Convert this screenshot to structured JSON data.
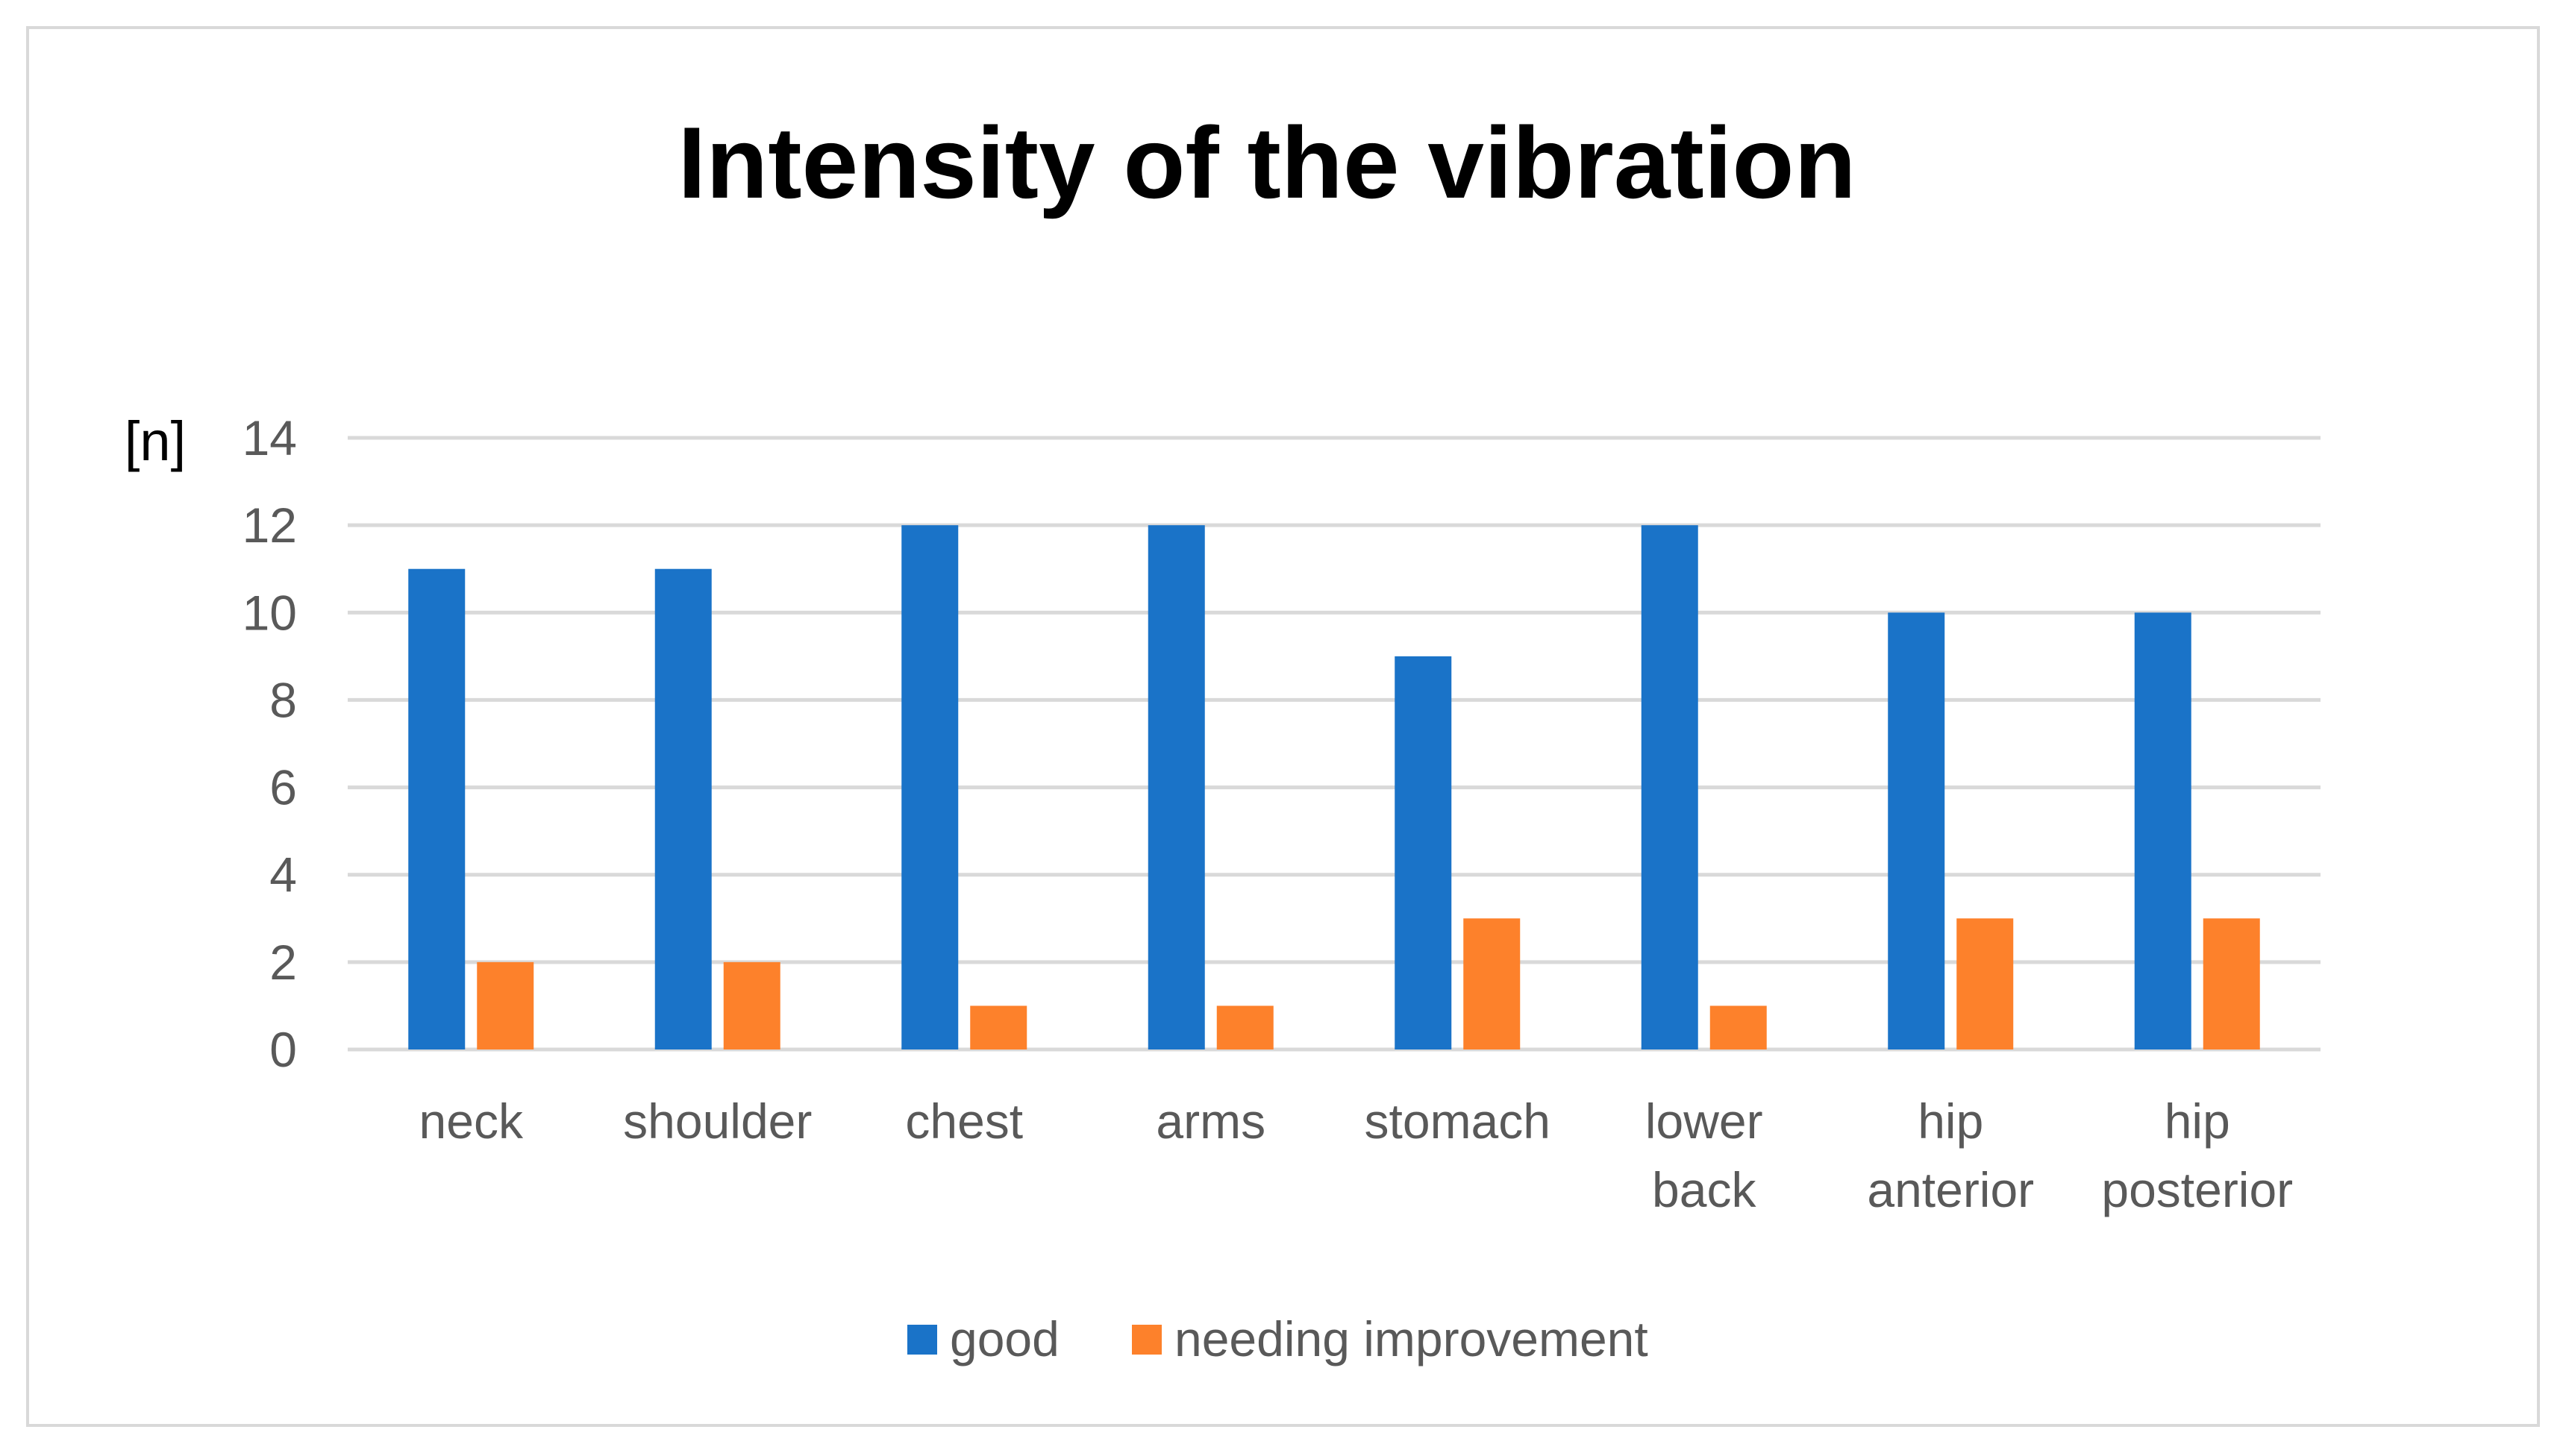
{
  "chart_data": {
    "type": "bar",
    "title": "Intensity of the vibration",
    "ylabel": "[n]",
    "xlabel": "",
    "ylim": [
      0,
      14
    ],
    "yticks": [
      0,
      2,
      4,
      6,
      8,
      10,
      12,
      14
    ],
    "grid": true,
    "legend_position": "bottom",
    "categories": [
      [
        "neck"
      ],
      [
        "shoulder"
      ],
      [
        "chest"
      ],
      [
        "arms"
      ],
      [
        "stomach"
      ],
      [
        "lower",
        "back"
      ],
      [
        "hip",
        "anterior"
      ],
      [
        "hip",
        "posterior"
      ]
    ],
    "series": [
      {
        "name": "good",
        "color": "#1a73c8",
        "values": [
          11,
          11,
          12,
          12,
          9,
          12,
          10,
          10
        ]
      },
      {
        "name": "needing improvement",
        "color": "#fd812b",
        "values": [
          2,
          2,
          1,
          1,
          3,
          1,
          3,
          3
        ]
      }
    ]
  }
}
